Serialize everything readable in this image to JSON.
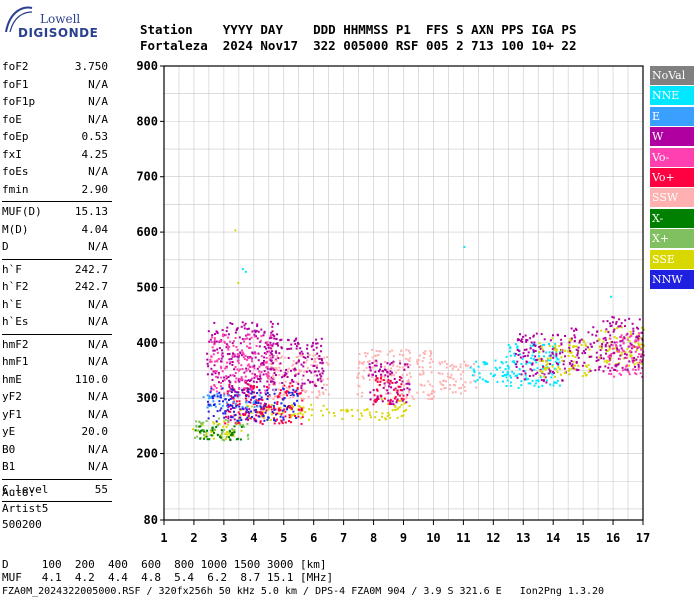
{
  "logo": {
    "line1": "Lowell",
    "line2": "DIGISONDE"
  },
  "header": {
    "line1": "Station    YYYY DAY    DDD HHMMSS P1  FFS S AXN PPS IGA PS",
    "line2": "Fortaleza  2024 Nov17  322 005000 RSF 005 2 713 100 10+ 22"
  },
  "params": [
    {
      "group": [
        {
          "k": "foF2",
          "v": "3.750"
        },
        {
          "k": "foF1",
          "v": "N/A"
        },
        {
          "k": "foF1p",
          "v": "N/A"
        },
        {
          "k": "foE",
          "v": "N/A"
        },
        {
          "k": "foEp",
          "v": "0.53"
        },
        {
          "k": "fxI",
          "v": "4.25"
        },
        {
          "k": "foEs",
          "v": "N/A"
        },
        {
          "k": "fmin",
          "v": "2.90"
        }
      ]
    },
    {
      "group": [
        {
          "k": "MUF(D)",
          "v": "15.13"
        },
        {
          "k": "M(D)",
          "v": "4.04"
        },
        {
          "k": "D",
          "v": "N/A"
        }
      ]
    },
    {
      "group": [
        {
          "k": "h`F",
          "v": "242.7"
        },
        {
          "k": "h`F2",
          "v": "242.7"
        },
        {
          "k": "h`E",
          "v": "N/A"
        },
        {
          "k": "h`Es",
          "v": "N/A"
        }
      ]
    },
    {
      "group": [
        {
          "k": "hmF2",
          "v": "N/A"
        },
        {
          "k": "hmF1",
          "v": "N/A"
        },
        {
          "k": "hmE",
          "v": "110.0"
        },
        {
          "k": "yF2",
          "v": "N/A"
        },
        {
          "k": "yF1",
          "v": "N/A"
        },
        {
          "k": "yE",
          "v": "20.0"
        },
        {
          "k": "B0",
          "v": "N/A"
        },
        {
          "k": "B1",
          "v": "N/A"
        }
      ]
    },
    {
      "group": [
        {
          "k": "C-level",
          "v": "55"
        }
      ]
    }
  ],
  "auto": {
    "l1": "Auto:",
    "l2": "Artist5",
    "l3": "500200"
  },
  "bottom": {
    "d_row": "D     100  200  400  600  800 1000 1500 3000 [km]",
    "muf_row": "MUF   4.1  4.2  4.4  4.8  5.4  6.2  8.7 15.1 [MHz]"
  },
  "footer": "FZA0M_2024322005000.RSF / 320fx256h 50 kHz 5.0 km / DPS-4 FZA0M 904 / 3.9 S 321.6 E   Ion2Png 1.3.20",
  "legend": [
    {
      "label": "NoVal",
      "color": "#808080"
    },
    {
      "label": "NNE",
      "color": "#00e8ff"
    },
    {
      "label": "E",
      "color": "#3aa0ff"
    },
    {
      "label": "W",
      "color": "#b000a0"
    },
    {
      "label": "Vo-",
      "color": "#ff40b0"
    },
    {
      "label": "Vo+",
      "color": "#ff0040"
    },
    {
      "label": "SSW",
      "color": "#ffb0b0"
    },
    {
      "label": "X-",
      "color": "#008000"
    },
    {
      "label": "X+",
      "color": "#80c060"
    },
    {
      "label": "SSE",
      "color": "#d8d800"
    },
    {
      "label": "NNW",
      "color": "#2020e0"
    }
  ],
  "chart_data": {
    "type": "scatter",
    "title": "",
    "xlabel": "",
    "ylabel": "",
    "xlim": [
      1,
      17
    ],
    "ylim": [
      80,
      900
    ],
    "x_ticks": [
      1,
      2,
      3,
      4,
      5,
      6,
      7,
      8,
      9,
      10,
      11,
      12,
      13,
      14,
      15,
      16,
      17
    ],
    "y_ticks": [
      80,
      200,
      300,
      400,
      500,
      600,
      700,
      800,
      900
    ],
    "grid": true,
    "legend_position": "right",
    "clusters": [
      {
        "series": "SSE",
        "x": [
          1.9,
          3.6
        ],
        "y": [
          228,
          260
        ]
      },
      {
        "series": "SSE",
        "x": [
          3.5,
          6.5
        ],
        "y": [
          262,
          290
        ]
      },
      {
        "series": "SSE",
        "x": [
          6.6,
          8.2
        ],
        "y": [
          262,
          282
        ]
      },
      {
        "series": "SSE",
        "x": [
          8.2,
          9.2
        ],
        "y": [
          262,
          300
        ]
      },
      {
        "series": "W",
        "x": [
          2.4,
          4.8
        ],
        "y": [
          330,
          440
        ]
      },
      {
        "series": "W",
        "x": [
          3.1,
          4.4
        ],
        "y": [
          260,
          340
        ]
      },
      {
        "series": "Vo-",
        "x": [
          2.5,
          4.6
        ],
        "y": [
          310,
          420
        ]
      },
      {
        "series": "Vo+",
        "x": [
          3.0,
          5.6
        ],
        "y": [
          255,
          330
        ]
      },
      {
        "series": "E",
        "x": [
          2.2,
          4.2
        ],
        "y": [
          285,
          310
        ]
      },
      {
        "series": "NNW",
        "x": [
          2.4,
          5.5
        ],
        "y": [
          260,
          320
        ]
      },
      {
        "series": "X+",
        "x": [
          2.0,
          3.8
        ],
        "y": [
          225,
          265
        ]
      },
      {
        "series": "X-",
        "x": [
          2.0,
          3.6
        ],
        "y": [
          225,
          255
        ]
      },
      {
        "series": "SSW",
        "x": [
          4.5,
          6.5
        ],
        "y": [
          300,
          380
        ]
      },
      {
        "series": "W",
        "x": [
          4.4,
          6.3
        ],
        "y": [
          320,
          410
        ]
      },
      {
        "series": "SSW",
        "x": [
          7.4,
          10.0
        ],
        "y": [
          300,
          390
        ]
      },
      {
        "series": "W",
        "x": [
          7.8,
          9.2
        ],
        "y": [
          290,
          370
        ]
      },
      {
        "series": "Vo+",
        "x": [
          7.9,
          9.0
        ],
        "y": [
          290,
          340
        ]
      },
      {
        "series": "SSW",
        "x": [
          10.1,
          11.4
        ],
        "y": [
          310,
          370
        ]
      },
      {
        "series": "NNE",
        "x": [
          11.2,
          12.8
        ],
        "y": [
          330,
          370
        ]
      },
      {
        "series": "NNE",
        "x": [
          12.3,
          14.2
        ],
        "y": [
          320,
          400
        ]
      },
      {
        "series": "W",
        "x": [
          12.7,
          14.4
        ],
        "y": [
          330,
          420
        ]
      },
      {
        "series": "SSE",
        "x": [
          13.5,
          15.2
        ],
        "y": [
          340,
          410
        ]
      },
      {
        "series": "W",
        "x": [
          14.5,
          15.6
        ],
        "y": [
          350,
          430
        ]
      },
      {
        "series": "SSE",
        "x": [
          15.5,
          17.0
        ],
        "y": [
          360,
          430
        ]
      },
      {
        "series": "W",
        "x": [
          15.6,
          17.0
        ],
        "y": [
          350,
          450
        ]
      },
      {
        "series": "Vo-",
        "x": [
          15.8,
          17.0
        ],
        "y": [
          340,
          420
        ]
      }
    ],
    "sparse_points": [
      {
        "series": "SSE",
        "x": 3.35,
        "y": 605
      },
      {
        "series": "SSE",
        "x": 3.45,
        "y": 510
      },
      {
        "series": "NNE",
        "x": 3.6,
        "y": 535
      },
      {
        "series": "NNE",
        "x": 3.7,
        "y": 530
      },
      {
        "series": "NNE",
        "x": 11.0,
        "y": 575
      },
      {
        "series": "NNE",
        "x": 15.9,
        "y": 485
      }
    ]
  }
}
